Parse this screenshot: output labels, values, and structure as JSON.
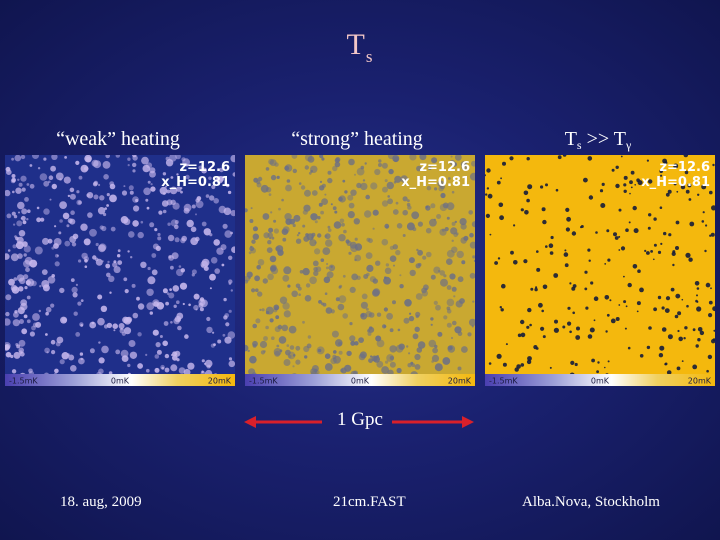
{
  "title": {
    "main": "T",
    "sub": "s"
  },
  "panels": [
    {
      "caption": "“weak” heating",
      "z_label": "z=12.6",
      "x_label": "x_H=0.81",
      "bar_min": "-1.5mK",
      "bar_mid": "0mK",
      "bar_max": "20mK",
      "base_color": "#1f2f8a",
      "spot_color": "#c9b9ee"
    },
    {
      "caption": "“strong” heating",
      "z_label": "z=12.6",
      "x_label": "x_H=0.81",
      "bar_min": "-1.5mK",
      "bar_mid": "0mK",
      "bar_max": "20mK",
      "base_color": "#c9a831",
      "spot_color": "#6b6f86"
    },
    {
      "caption_main": "T",
      "caption_sub": "s",
      "caption_rest": " >> T",
      "caption_sub2": "γ",
      "z_label": "z=12.6",
      "x_label": "x_H=0.81",
      "bar_min": "-1.5mK",
      "bar_mid": "0mK",
      "bar_max": "20mK",
      "base_color": "#f4b80d",
      "spot_color": "#161d3a"
    }
  ],
  "scale": {
    "label": "1 Gpc",
    "arrow_color": "#d9202a"
  },
  "footer": {
    "date": "18. aug, 2009",
    "code": "21cm.FAST",
    "location": "Alba.Nova, Stockholm"
  }
}
